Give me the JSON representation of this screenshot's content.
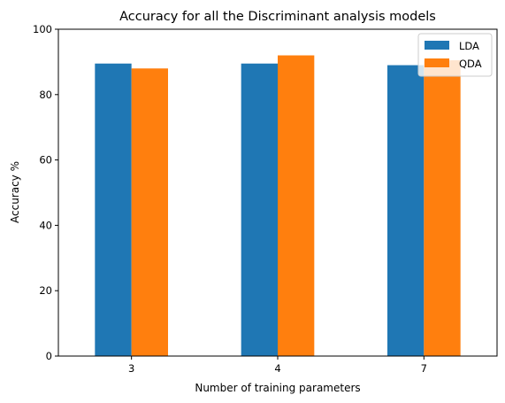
{
  "chart_data": {
    "type": "bar",
    "title": "Accuracy for all the Discriminant analysis models",
    "xlabel": "Number of training parameters",
    "ylabel": "Accuracy %",
    "categories": [
      "3",
      "4",
      "7"
    ],
    "series": [
      {
        "name": "LDA",
        "color": "#1f77b4",
        "values": [
          89.5,
          89.5,
          89.0
        ]
      },
      {
        "name": "QDA",
        "color": "#ff7f0e",
        "values": [
          88.0,
          92.0,
          90.5
        ]
      }
    ],
    "ylim": [
      0,
      100
    ],
    "yticks": [
      0,
      20,
      40,
      60,
      80,
      100
    ],
    "grid": false,
    "legend_position": "top-right"
  }
}
